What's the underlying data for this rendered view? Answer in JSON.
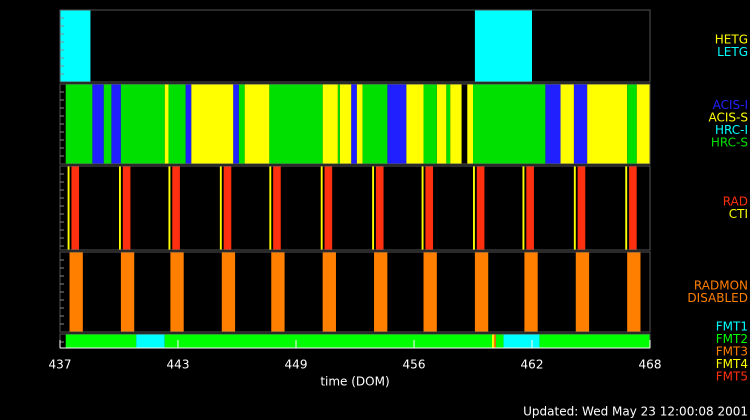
{
  "chart_data": {
    "type": "timeline",
    "xlabel": "time (DOM)",
    "footer": "Updated: Wed May 23 12:00:08 2001",
    "xlim": [
      437,
      468
    ],
    "xticks": [
      437,
      {
        "value": 443.2,
        "label": "443"
      },
      {
        "value": 449.4,
        "label": "449"
      },
      {
        "value": 455.6,
        "label": "456"
      },
      {
        "value": 461.8,
        "label": "462"
      },
      468
    ],
    "panels": [
      {
        "series": [
          {
            "name": "HETG",
            "color": "#ffff00",
            "intervals": []
          },
          {
            "name": "LETG",
            "color": "#00ffff",
            "intervals": [
              [
                437.0,
                438.6
              ],
              [
                458.8,
                461.8
              ]
            ]
          }
        ]
      },
      {
        "series": [
          {
            "name": "ACIS-I",
            "color": "#2020ff",
            "intervals": [
              [
                438.7,
                439.3
              ],
              [
                439.7,
                440.2
              ],
              [
                443.6,
                443.9
              ],
              [
                446.1,
                446.4
              ],
              [
                452.3,
                452.6
              ],
              [
                454.2,
                455.2
              ],
              [
                462.5,
                463.3
              ],
              [
                464.0,
                464.7
              ]
            ]
          },
          {
            "name": "ACIS-S",
            "color": "#ffff00",
            "intervals": [
              [
                442.5,
                442.7
              ],
              [
                443.9,
                446.1
              ],
              [
                446.7,
                448.0
              ],
              [
                450.8,
                451.6
              ],
              [
                451.7,
                452.3
              ],
              [
                452.6,
                452.9
              ],
              [
                455.2,
                456.1
              ],
              [
                456.8,
                457.3
              ],
              [
                457.5,
                458.1
              ],
              [
                458.4,
                458.7
              ],
              [
                463.3,
                464.0
              ],
              [
                464.7,
                466.8
              ],
              [
                467.3,
                468.0
              ]
            ]
          },
          {
            "name": "HRC-I",
            "color": "#00ffff",
            "intervals": []
          },
          {
            "name": "HRC-S",
            "color": "#00e000",
            "intervals": [
              [
                437.3,
                438.7
              ],
              [
                439.3,
                439.7
              ],
              [
                440.2,
                442.5
              ],
              [
                442.7,
                443.6
              ],
              [
                446.4,
                446.7
              ],
              [
                448.0,
                450.8
              ],
              [
                451.6,
                451.7
              ],
              [
                452.9,
                454.2
              ],
              [
                456.1,
                456.8
              ],
              [
                457.3,
                457.5
              ],
              [
                458.7,
                462.5
              ],
              [
                466.8,
                467.3
              ]
            ]
          }
        ]
      },
      {
        "series": [
          {
            "name": "RAD",
            "color": "#ff3010",
            "intervals": [
              [
                437.6,
                438.0
              ],
              [
                440.3,
                440.7
              ],
              [
                442.9,
                443.3
              ],
              [
                445.6,
                446.0
              ],
              [
                448.2,
                448.6
              ],
              [
                450.9,
                451.3
              ],
              [
                453.6,
                454.0
              ],
              [
                456.2,
                456.6
              ],
              [
                458.9,
                459.3
              ],
              [
                461.5,
                461.9
              ],
              [
                464.2,
                464.6
              ],
              [
                466.9,
                467.3
              ]
            ]
          },
          {
            "name": "CTI",
            "color": "#ffff00",
            "intervals": [
              [
                437.4,
                437.5
              ],
              [
                440.1,
                440.2
              ],
              [
                442.7,
                442.8
              ],
              [
                445.4,
                445.5
              ],
              [
                448.0,
                448.1
              ],
              [
                450.7,
                450.8
              ],
              [
                453.4,
                453.5
              ],
              [
                456.0,
                456.1
              ],
              [
                458.7,
                458.8
              ],
              [
                461.3,
                461.4
              ],
              [
                464.0,
                464.1
              ],
              [
                466.7,
                466.8
              ]
            ]
          }
        ]
      },
      {
        "series": [
          {
            "name": "RADMON",
            "color": "#ff7f00",
            "intervals": [
              [
                437.5,
                438.2
              ],
              [
                440.2,
                440.9
              ],
              [
                442.8,
                443.5
              ],
              [
                445.5,
                446.2
              ],
              [
                448.1,
                448.8
              ],
              [
                450.8,
                451.5
              ],
              [
                453.5,
                454.2
              ],
              [
                456.1,
                456.8
              ],
              [
                458.8,
                459.5
              ],
              [
                461.4,
                462.1
              ],
              [
                464.1,
                464.8
              ],
              [
                466.8,
                467.5
              ]
            ]
          },
          {
            "name": "DISABLED",
            "color": "#ff7f00",
            "intervals": []
          }
        ]
      },
      {
        "series": [
          {
            "name": "FMT1",
            "color": "#00ffff",
            "intervals": [
              [
                441.0,
                442.5
              ],
              [
                460.3,
                462.2
              ]
            ]
          },
          {
            "name": "FMT2",
            "color": "#00ff00",
            "intervals": [
              [
                437.3,
                441.0
              ],
              [
                442.5,
                459.7
              ],
              [
                459.9,
                460.3
              ],
              [
                462.2,
                468.0
              ]
            ]
          },
          {
            "name": "FMT3",
            "color": "#ff7f00",
            "intervals": [
              [
                459.8,
                459.9
              ]
            ]
          },
          {
            "name": "FMT4",
            "color": "#ffff00",
            "intervals": [
              [
                459.7,
                459.8
              ]
            ]
          },
          {
            "name": "FMT5",
            "color": "#ff3010",
            "intervals": []
          }
        ]
      }
    ]
  }
}
